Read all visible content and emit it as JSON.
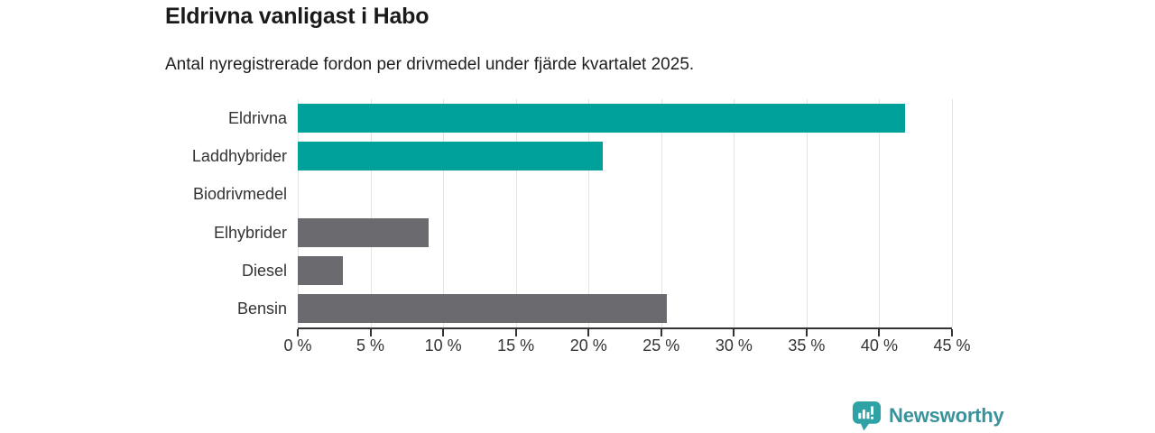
{
  "header": {
    "title": "Eldrivna vanligast i Habo",
    "subtitle": "Antal nyregistrerade fordon per drivmedel under fjärde kvartalet 2025."
  },
  "chart_data": {
    "type": "bar",
    "orientation": "horizontal",
    "title": "Eldrivna vanligast i Habo",
    "subtitle": "Antal nyregistrerade fordon per drivmedel under fjärde kvartalet 2025.",
    "categories": [
      "Eldrivna",
      "Laddhybrider",
      "Biodrivmedel",
      "Elhybrider",
      "Diesel",
      "Bensin"
    ],
    "values": [
      41.8,
      21.0,
      0,
      9.0,
      3.1,
      25.4
    ],
    "bar_colors": [
      "#00a19a",
      "#00a19a",
      "#6b6a6e",
      "#6b6a6e",
      "#6b6a6e",
      "#6b6a6e"
    ],
    "xlabel": "",
    "ylabel": "",
    "xlim": [
      0,
      45
    ],
    "x_ticks": [
      0,
      5,
      10,
      15,
      20,
      25,
      30,
      35,
      40,
      45
    ],
    "x_tick_suffix": " %",
    "grid": true,
    "legend": false
  },
  "colors": {
    "accent_teal": "#00a19a",
    "neutral_gray": "#6b6a6e",
    "axis": "#333333",
    "gridline": "#e3e3e3"
  },
  "branding": {
    "logo_text": "Newsworthy",
    "logo_text_color": "#3a929b",
    "logo_icon": "bar-chart-pin-icon",
    "logo_icon_color": "#2fa2a6"
  }
}
